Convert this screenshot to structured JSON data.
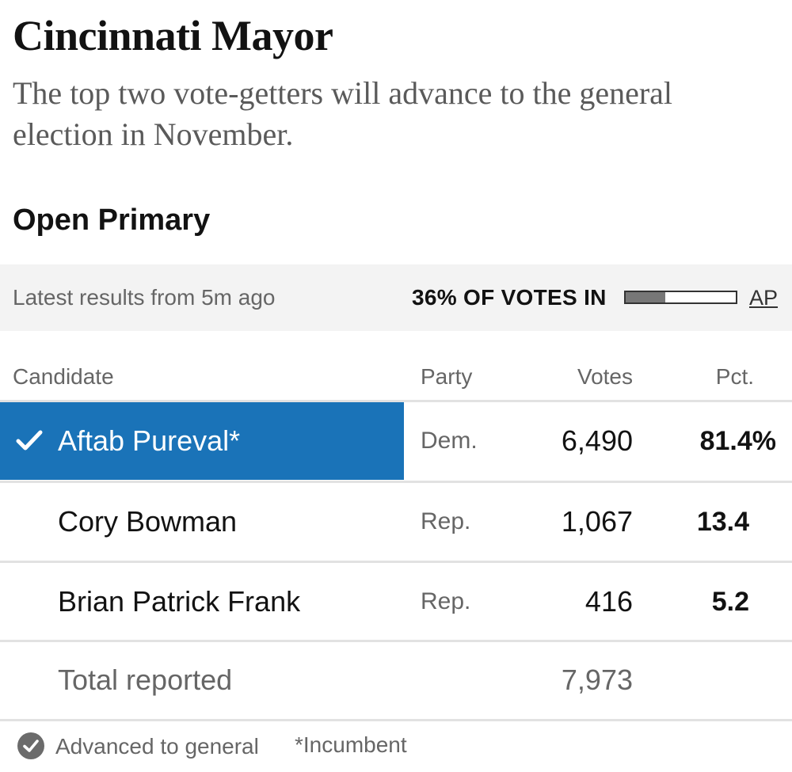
{
  "header": {
    "title": "Cincinnati Mayor",
    "subtitle": "The top two vote-getters will advance to the general election in November."
  },
  "race": {
    "name": "Open Primary",
    "latest_results": "Latest results from 5m ago",
    "votes_in_label": "36% OF VOTES IN",
    "votes_in_fraction": 0.36,
    "source_link": "AP"
  },
  "table": {
    "headers": {
      "candidate": "Candidate",
      "party": "Party",
      "votes": "Votes",
      "pct": "Pct."
    },
    "rows": [
      {
        "candidate": "Aftab Pureval*",
        "party": "Dem.",
        "votes": "6,490",
        "pct": "81.4%",
        "advanced": true
      },
      {
        "candidate": "Cory Bowman",
        "party": "Rep.",
        "votes": "1,067",
        "pct": "13.4",
        "advanced": false
      },
      {
        "candidate": "Brian Patrick Frank",
        "party": "Rep.",
        "votes": "416",
        "pct": "5.2",
        "advanced": false
      }
    ],
    "total": {
      "label": "Total reported",
      "votes": "7,973"
    }
  },
  "legend": {
    "advanced": "Advanced to general",
    "incumbent": "*Incumbent"
  },
  "colors": {
    "winner_highlight": "#1a73b8",
    "status_bar_bg": "#f3f3f3",
    "divider": "#e2e2e2"
  },
  "icons": {
    "winner": "check-icon",
    "legend": "check-circle-icon"
  }
}
